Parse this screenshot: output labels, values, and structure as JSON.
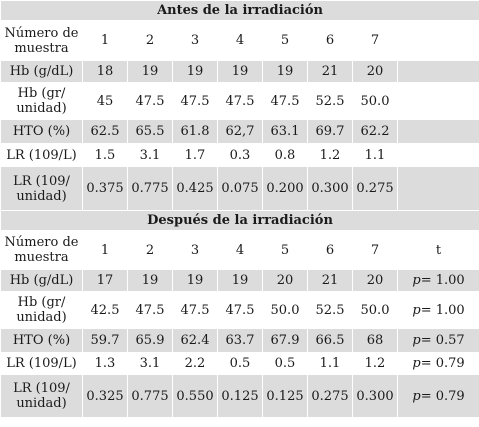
{
  "sections": [
    {
      "title": "Antes de la irradiación",
      "header": {
        "label": "Número de muestra",
        "cols": [
          "1",
          "2",
          "3",
          "4",
          "5",
          "6",
          "7"
        ],
        "extra": ""
      },
      "rows": [
        {
          "label": "Hb (g/dL)",
          "values": [
            "18",
            "19",
            "19",
            "19",
            "19",
            "21",
            "20"
          ],
          "extra": ""
        },
        {
          "label": "Hb (gr/ unidad)",
          "values": [
            "45",
            "47.5",
            "47.5",
            "47.5",
            "47.5",
            "52.5",
            "50.0"
          ],
          "extra": ""
        },
        {
          "label": "HTO (%)",
          "values": [
            "62.5",
            "65.5",
            "61.8",
            "62,7",
            "63.1",
            "69.7",
            "62.2"
          ],
          "extra": ""
        },
        {
          "label": "LR (109/L)",
          "values": [
            "1.5",
            "3.1",
            "1.7",
            "0.3",
            "0.8",
            "1.2",
            "1.1"
          ],
          "extra": ""
        },
        {
          "label": "LR (109/ unidad)",
          "values": [
            "0.375",
            "0.775",
            "0.425",
            "0.075",
            "0.200",
            "0.300",
            "0.275"
          ],
          "extra": ""
        }
      ]
    },
    {
      "title": "Después de la irradiación",
      "header": {
        "label": "Número de muestra",
        "cols": [
          "1",
          "2",
          "3",
          "4",
          "5",
          "6",
          "7"
        ],
        "extra": "t"
      },
      "rows": [
        {
          "label": "Hb (g/dL)",
          "values": [
            "17",
            "19",
            "19",
            "19",
            "20",
            "21",
            "20"
          ],
          "p": "p",
          "pv": "= 1.00"
        },
        {
          "label": "Hb (gr/ unidad)",
          "values": [
            "42.5",
            "47.5",
            "47.5",
            "47.5",
            "50.0",
            "52.5",
            "50.0"
          ],
          "p": "p",
          "pv": "= 1.00"
        },
        {
          "label": "HTO (%)",
          "values": [
            "59.7",
            "65.9",
            "62.4",
            "63.7",
            "67.9",
            "66.5",
            "68"
          ],
          "p": "p",
          "pv": "= 0.57"
        },
        {
          "label": "LR (109/L)",
          "values": [
            "1.3",
            "3.1",
            "2.2",
            "0.5",
            "0.5",
            "1.1",
            "1.2"
          ],
          "p": "p",
          "pv": "= 0.79"
        },
        {
          "label": "LR (109/ unidad)",
          "values": [
            "0.325",
            "0.775",
            "0.550",
            "0.125",
            "0.125",
            "0.275",
            "0.300"
          ],
          "p": "p",
          "pv": "= 0.79"
        }
      ]
    }
  ]
}
